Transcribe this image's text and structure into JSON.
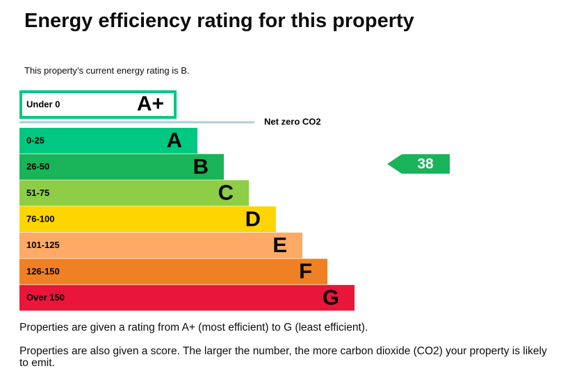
{
  "header": {
    "title": "Energy efficiency rating for this property",
    "subtitle": "This property’s current energy rating is B."
  },
  "top_band": {
    "range": "Under 0",
    "letter": "A+",
    "color": "#00c781"
  },
  "net_zero_label": "Net zero CO2",
  "bands": [
    {
      "range": "0-25",
      "letter": "A",
      "color": "#00c781"
    },
    {
      "range": "26-50",
      "letter": "B",
      "color": "#19b459"
    },
    {
      "range": "51-75",
      "letter": "C",
      "color": "#8dce46"
    },
    {
      "range": "76-100",
      "letter": "D",
      "color": "#ffd500"
    },
    {
      "range": "101-125",
      "letter": "E",
      "color": "#fcaa65"
    },
    {
      "range": "126-150",
      "letter": "F",
      "color": "#ef8023"
    },
    {
      "range": "Over 150",
      "letter": "G",
      "color": "#e9153b"
    }
  ],
  "current_score": {
    "score": "38",
    "color": "#19b459"
  },
  "paragraphs": [
    "Properties are given a rating from A+ (most efficient) to G (least efficient).",
    "Properties are also given a score. The larger the number, the more carbon dioxide (CO2) your property is likely to emit."
  ]
}
